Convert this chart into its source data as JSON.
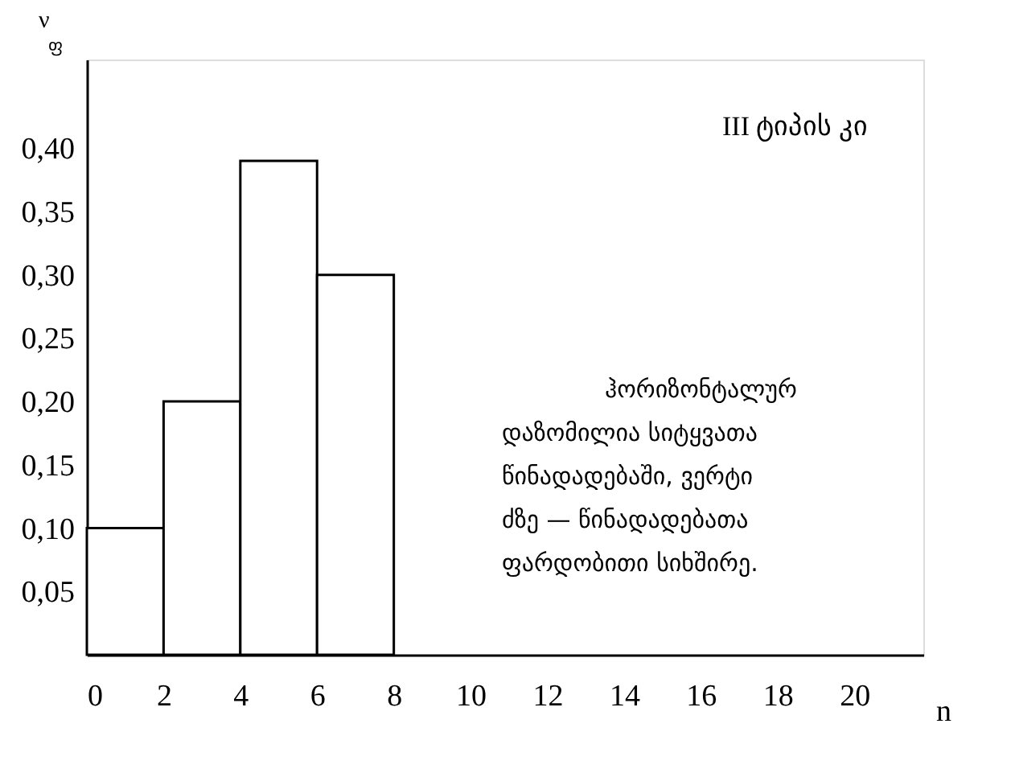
{
  "chart_data": {
    "type": "histogram",
    "title": "III ტიპის კი",
    "xlabel": "n",
    "ylabel": "ν$_{ფ}$",
    "bins": [
      0,
      2,
      4,
      6,
      8
    ],
    "values": [
      0.1,
      0.2,
      0.39,
      0.3
    ],
    "color": "#ffffff",
    "xlim": [
      0,
      21.8
    ],
    "xticks": [
      0,
      2,
      4,
      6,
      8,
      10,
      12,
      14,
      16,
      18,
      20
    ],
    "ylim": [
      0,
      0.47
    ],
    "yticks": [
      {
        "value": 0.05,
        "label": "0,05"
      },
      {
        "value": 0.1,
        "label": "0,10"
      },
      {
        "value": 0.15,
        "label": "0,15"
      },
      {
        "value": 0.2,
        "label": "0,20"
      },
      {
        "value": 0.25,
        "label": "0,25"
      },
      {
        "value": 0.3,
        "label": "0,30"
      },
      {
        "value": 0.35,
        "label": "0,35"
      },
      {
        "value": 0.4,
        "label": "0,40"
      }
    ],
    "grid": false,
    "annotations": [
      "ჰორიზონტალურ",
      "დაზომილია სიტყვათა",
      "წინადადებაში, ვერტი",
      "ძზე — წინადადებათა",
      "ფარდობითი სიხშირე."
    ]
  }
}
